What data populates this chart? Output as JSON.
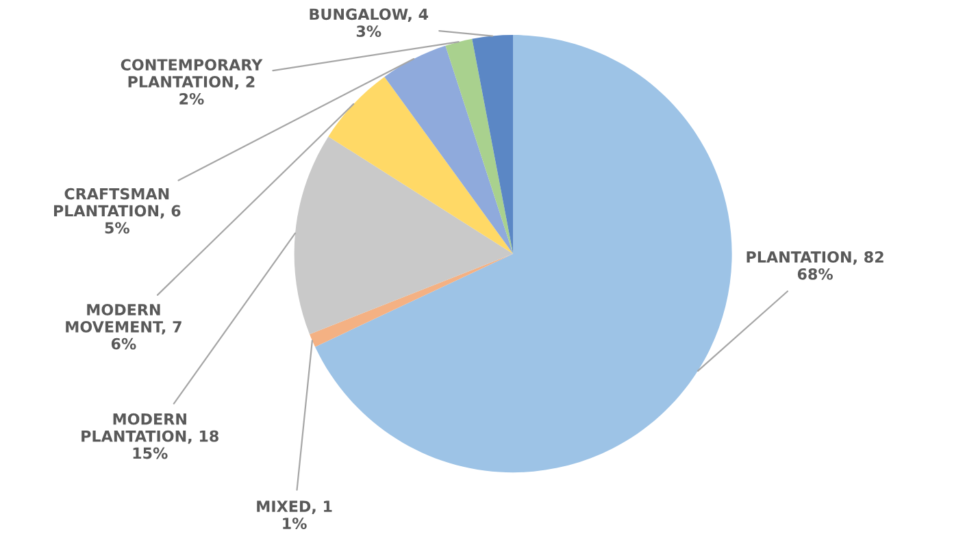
{
  "chart_data": {
    "type": "pie",
    "categories": [
      "PLANTATION, 82",
      "MIXED, 1",
      "MODERN PLANTATION, 18",
      "MODERN MOVEMENT, 7",
      "CRAFTSMAN PLANTATION, 6",
      "CONTEMPORARY PLANTATION, 2",
      "BUNGALOW, 4"
    ],
    "values": [
      68,
      1,
      15,
      6,
      5,
      2,
      3
    ],
    "value_labels": [
      "68%",
      "1%",
      "15%",
      "6%",
      "5%",
      "2%",
      "3%"
    ],
    "colors": [
      "#9dc3e6",
      "#f4b183",
      "#c9c9c9",
      "#ffd966",
      "#8faadc",
      "#a9d18e",
      "#5b87c5"
    ]
  }
}
